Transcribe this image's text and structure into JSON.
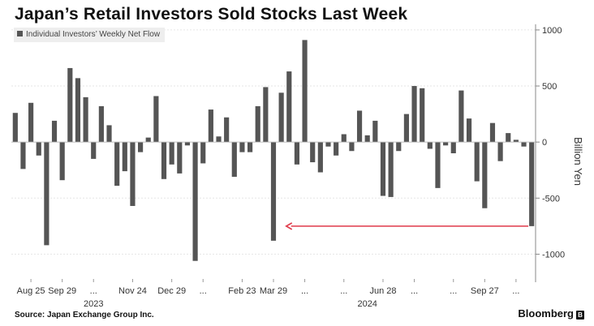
{
  "chart_data": {
    "type": "bar",
    "title": "Japan’s Retail Investors Sold Stocks Last Week",
    "series": [
      {
        "name": "Individual Investors' Weekly Net Flow",
        "values": [
          260,
          -240,
          350,
          -120,
          -920,
          190,
          -340,
          660,
          570,
          400,
          -150,
          320,
          150,
          -390,
          -260,
          -570,
          -90,
          40,
          410,
          -330,
          -200,
          -280,
          -30,
          -1060,
          -190,
          290,
          50,
          220,
          -310,
          -90,
          -90,
          320,
          490,
          -880,
          440,
          630,
          -200,
          910,
          -180,
          -270,
          -40,
          -120,
          70,
          -80,
          280,
          60,
          190,
          -480,
          -490,
          -80,
          250,
          500,
          480,
          -60,
          -410,
          -30,
          -100,
          460,
          210,
          -350,
          -590,
          170,
          -170,
          80,
          20,
          -40,
          -750
        ]
      }
    ],
    "xlabel": "",
    "ylabel": "Billion Yen",
    "ylim": [
      -1250,
      1050
    ],
    "yticks": [
      1000,
      500,
      0,
      -500,
      -1000
    ],
    "xtick_labels": [
      {
        "index": 2,
        "label": "Aug 25"
      },
      {
        "index": 6,
        "label": "Sep 29"
      },
      {
        "index": 10,
        "label": "..."
      },
      {
        "index": 15,
        "label": "Nov 24"
      },
      {
        "index": 20,
        "label": "Dec 29"
      },
      {
        "index": 24,
        "label": "..."
      },
      {
        "index": 29,
        "label": "Feb 23"
      },
      {
        "index": 33,
        "label": "Mar 29"
      },
      {
        "index": 37,
        "label": "..."
      },
      {
        "index": 42,
        "label": "..."
      },
      {
        "index": 47,
        "label": "Jun 28"
      },
      {
        "index": 51,
        "label": "..."
      },
      {
        "index": 56,
        "label": "..."
      },
      {
        "index": 60,
        "label": "Sep 27"
      },
      {
        "index": 64,
        "label": "..."
      }
    ],
    "year_labels": [
      {
        "index": 10,
        "label": "2023"
      },
      {
        "index": 45,
        "label": "2024"
      }
    ],
    "annotation": {
      "type": "arrow",
      "from_index": 66,
      "to_index": 34,
      "y_value": -750,
      "color": "#e03a4a"
    },
    "grid": true,
    "bar_color": "#555555"
  },
  "legend": {
    "label": "Individual Investors’ Weekly Net Flow"
  },
  "footer": {
    "source": "Source: Japan Exchange Group Inc.",
    "brand": "Bloomberg",
    "brand_icon": "B"
  }
}
